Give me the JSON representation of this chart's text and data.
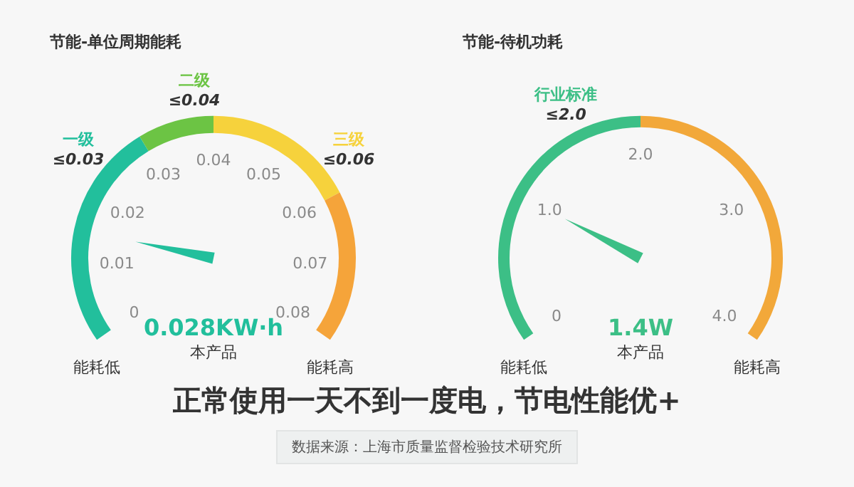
{
  "chart_data": [
    {
      "type": "donut",
      "title": "节能-单位周期能耗",
      "categories": [
        "一级 ≤0.03",
        "二级 ≤0.04",
        "三级 ≤0.06",
        null
      ],
      "values": [
        37.5,
        12.5,
        25,
        25
      ],
      "colors": [
        "#22bf9c",
        "#6cc444",
        "#f6d23c",
        "#f5a43a"
      ],
      "needle": "一级 ≤0.03",
      "annotations": [
        "0",
        "0.01",
        "0.02",
        "0.03",
        "0.04",
        "0.05",
        "0.06",
        "0.07",
        "0.08",
        "0.028KW·h",
        "本产品",
        "能耗低",
        "能耗高"
      ]
    },
    {
      "type": "donut",
      "title": "节能-待机功耗",
      "categories": [
        "行业标准 ≤2.0",
        null
      ],
      "values": [
        50,
        50
      ],
      "colors": [
        "#3cbf86",
        "#f2a83a"
      ],
      "needle": "行业标准 ≤2.0",
      "annotations": [
        "0",
        "1.0",
        "2.0",
        "3.0",
        "4.0",
        "1.4W",
        "本产品",
        "能耗低",
        "能耗高"
      ]
    },
    {
      "type": "other",
      "title": "正常使用一天不到一度电，节电性能优+",
      "annotations": [
        "数据来源：上海市质量监督检验技术研究所"
      ]
    }
  ]
}
